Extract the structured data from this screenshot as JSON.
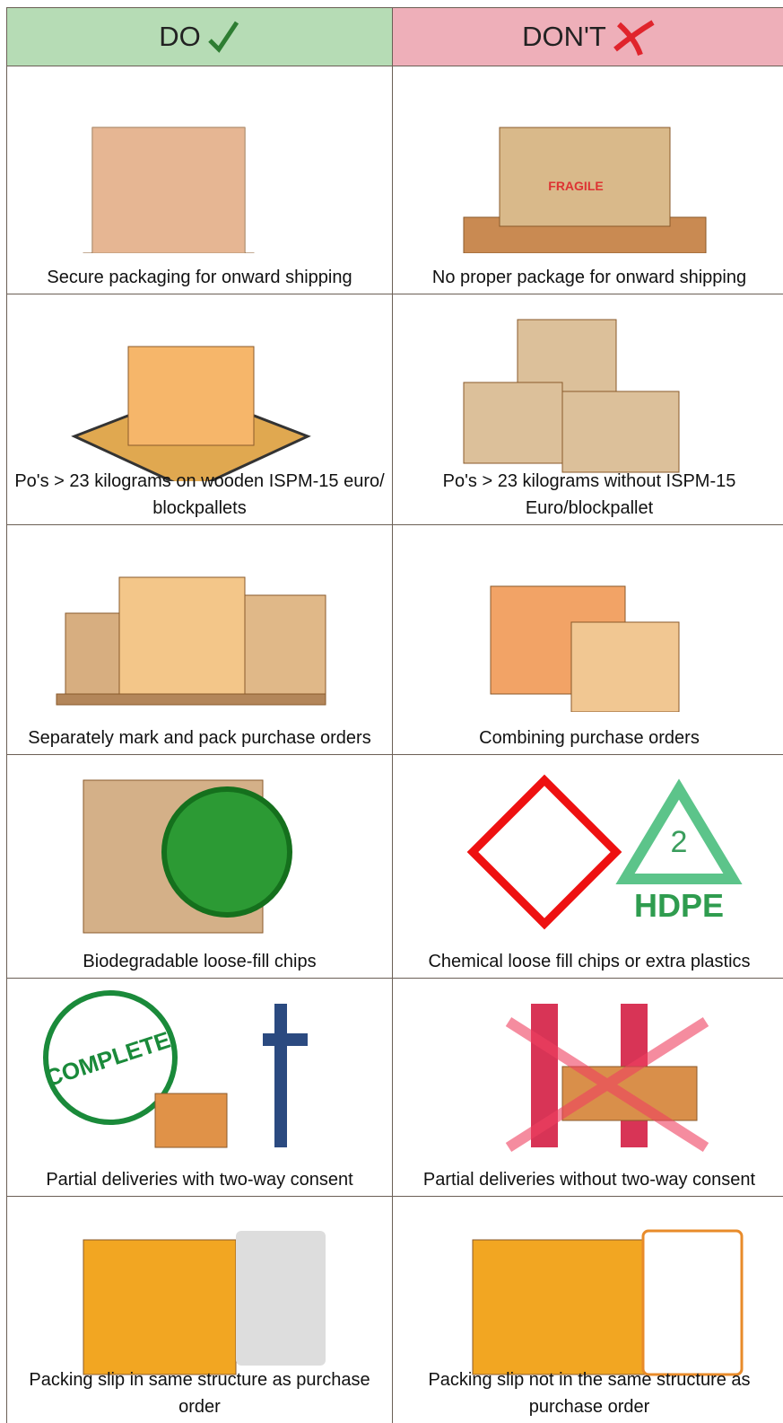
{
  "header": {
    "do": "DO",
    "dont": "DON'T"
  },
  "rows": [
    {
      "do": "Secure packaging for onward shipping",
      "dont": "No proper package for onward shipping",
      "dont_image_text": "FRAGILE"
    },
    {
      "do": "Po's  > 23 kilograms on wooden ISPM-15 euro/ blockpallets",
      "dont": "Po's > 23 kilograms without ISPM-15  Euro/blockpallet"
    },
    {
      "do": "Separately mark and pack purchase orders",
      "dont": "Combining purchase orders"
    },
    {
      "do": "Biodegradable loose-fill chips",
      "dont": "Chemical loose fill chips or extra plastics",
      "dont_image_text": [
        "2",
        "HDPE"
      ]
    },
    {
      "do": "Partial deliveries with two-way consent",
      "dont": "Partial deliveries without two-way consent",
      "do_image_text": "COMPLETE"
    },
    {
      "do": "Packing slip in same structure as purchase order",
      "dont": "Packing slip not in the same structure as purchase order"
    }
  ]
}
